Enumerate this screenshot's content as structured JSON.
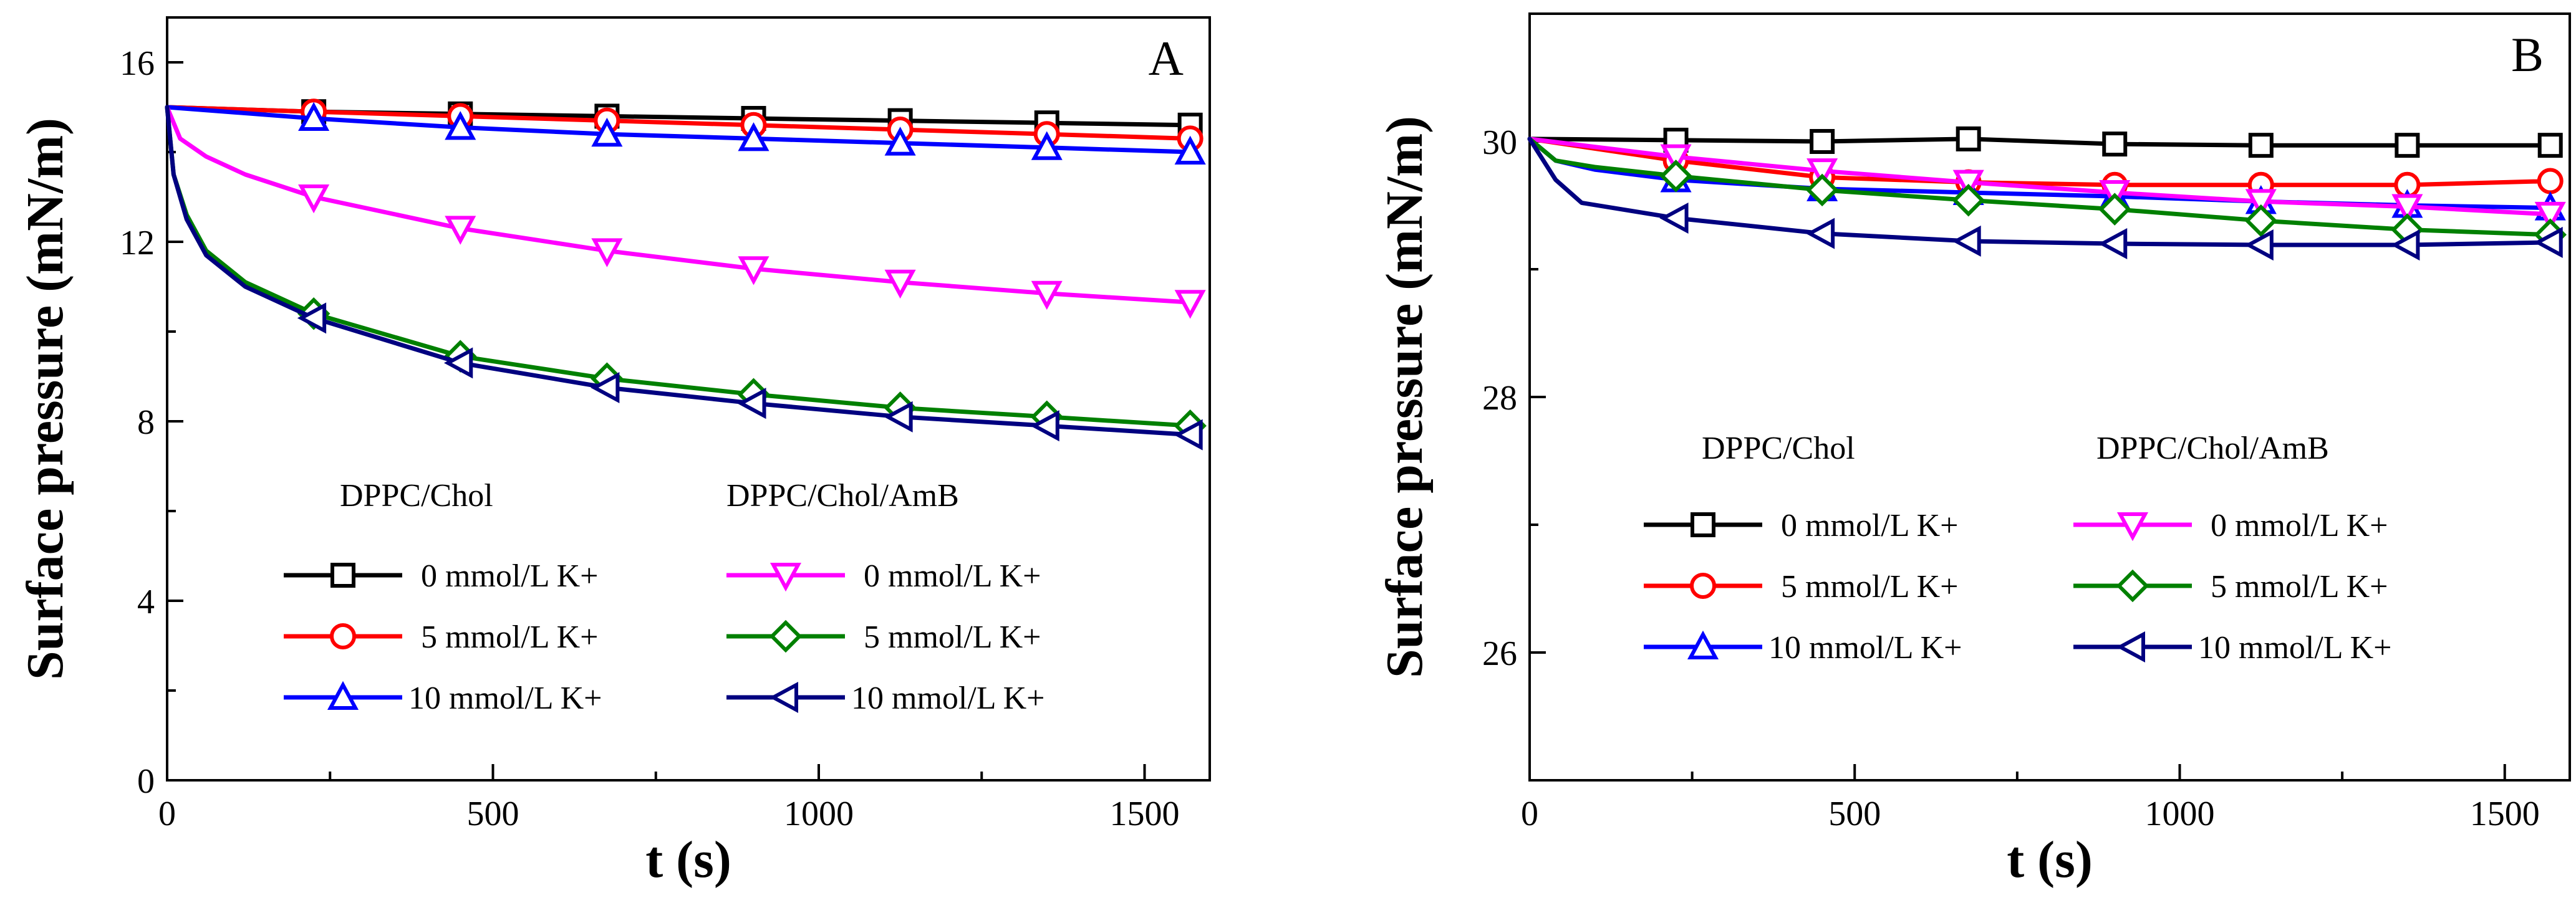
{
  "chart_data": [
    {
      "type": "line",
      "panel_label": "A",
      "xlabel": "t (s)",
      "ylabel": "Surface pressure (mN/m)",
      "xlim": [
        0,
        1600
      ],
      "ylim": [
        0,
        17
      ],
      "xticks": [
        0,
        500,
        1000,
        1500
      ],
      "xtick_labels": [
        "0",
        "500",
        "1000",
        "1500"
      ],
      "xminor": [
        250,
        750,
        1250
      ],
      "yticks": [
        0,
        4,
        8,
        12,
        16
      ],
      "ytick_labels": [
        "0",
        "4",
        "8",
        "12",
        "16"
      ],
      "yminor": [
        2,
        6,
        10,
        14
      ],
      "legend_group_titles": [
        "DPPC/Chol",
        "DPPC/Chol/AmB"
      ],
      "series": [
        {
          "name": "0 mmol/L K+",
          "group": "DPPC/Chol",
          "color": "#000000",
          "marker": "square",
          "x": [
            0,
            225,
            450,
            675,
            900,
            1125,
            1350,
            1570
          ],
          "y": [
            15.0,
            14.9,
            14.85,
            14.8,
            14.75,
            14.7,
            14.65,
            14.6
          ]
        },
        {
          "name": "5 mmol/L K+",
          "group": "DPPC/Chol",
          "color": "#ff0000",
          "marker": "circle",
          "x": [
            0,
            225,
            450,
            675,
            900,
            1125,
            1350,
            1570
          ],
          "y": [
            15.0,
            14.9,
            14.8,
            14.7,
            14.6,
            14.5,
            14.4,
            14.3
          ]
        },
        {
          "name": "10 mmol/L K+",
          "group": "DPPC/Chol",
          "color": "#0000ff",
          "marker": "triangle-up",
          "x": [
            0,
            225,
            450,
            675,
            900,
            1125,
            1350,
            1570
          ],
          "y": [
            15.0,
            14.75,
            14.55,
            14.4,
            14.3,
            14.2,
            14.1,
            14.0
          ]
        },
        {
          "name": "0 mmol/L K+",
          "group": "DPPC/Chol/AmB",
          "color": "#ff00ff",
          "marker": "triangle-down",
          "x": [
            0,
            20,
            60,
            120,
            225,
            450,
            675,
            900,
            1125,
            1350,
            1570
          ],
          "y": [
            15.0,
            14.3,
            13.9,
            13.5,
            13.0,
            12.3,
            11.8,
            11.4,
            11.1,
            10.85,
            10.65
          ]
        },
        {
          "name": "5 mmol/L K+",
          "group": "DPPC/Chol/AmB",
          "color": "#008000",
          "marker": "diamond",
          "x": [
            0,
            10,
            30,
            60,
            120,
            225,
            450,
            675,
            900,
            1125,
            1350,
            1570
          ],
          "y": [
            15.0,
            13.5,
            12.6,
            11.8,
            11.1,
            10.4,
            9.45,
            8.95,
            8.6,
            8.3,
            8.1,
            7.9
          ]
        },
        {
          "name": "10 mmol/L K+",
          "group": "DPPC/Chol/AmB",
          "color": "#000080",
          "marker": "triangle-left",
          "x": [
            0,
            10,
            30,
            60,
            120,
            225,
            450,
            675,
            900,
            1125,
            1350,
            1570
          ],
          "y": [
            15.0,
            13.5,
            12.5,
            11.7,
            11.0,
            10.3,
            9.3,
            8.75,
            8.4,
            8.1,
            7.9,
            7.7
          ]
        }
      ]
    },
    {
      "type": "line",
      "panel_label": "B",
      "xlabel": "t (s)",
      "ylabel": "Surface pressure (mN/m)",
      "xlim": [
        0,
        1600
      ],
      "ylim": [
        25,
        31
      ],
      "xticks": [
        0,
        500,
        1000,
        1500
      ],
      "xtick_labels": [
        "0",
        "500",
        "1000",
        "1500"
      ],
      "xminor": [
        250,
        750,
        1250
      ],
      "yticks": [
        26,
        28,
        30
      ],
      "ytick_labels": [
        "26",
        "28",
        "30"
      ],
      "yminor": [
        27,
        29
      ],
      "legend_group_titles": [
        "DPPC/Chol",
        "DPPC/Chol/AmB"
      ],
      "series": [
        {
          "name": "0 mmol/L K+",
          "group": "DPPC/Chol",
          "color": "#000000",
          "marker": "square",
          "x": [
            0,
            225,
            450,
            675,
            900,
            1125,
            1350,
            1570
          ],
          "y": [
            30.02,
            30.01,
            30.0,
            30.02,
            29.98,
            29.97,
            29.97,
            29.97
          ]
        },
        {
          "name": "5 mmol/L K+",
          "group": "DPPC/Chol",
          "color": "#ff0000",
          "marker": "circle",
          "x": [
            0,
            225,
            450,
            675,
            900,
            1125,
            1350,
            1570
          ],
          "y": [
            30.02,
            29.85,
            29.72,
            29.68,
            29.66,
            29.66,
            29.66,
            29.69
          ]
        },
        {
          "name": "10 mmol/L K+",
          "group": "DPPC/Chol",
          "color": "#0000ff",
          "marker": "triangle-up",
          "x": [
            0,
            40,
            100,
            225,
            450,
            675,
            900,
            1125,
            1350,
            1570
          ],
          "y": [
            30.02,
            29.85,
            29.78,
            29.7,
            29.63,
            29.6,
            29.57,
            29.53,
            29.5,
            29.48
          ]
        },
        {
          "name": "0 mmol/L K+",
          "group": "DPPC/Chol/AmB",
          "color": "#ff00ff",
          "marker": "triangle-down",
          "x": [
            0,
            225,
            450,
            675,
            900,
            1125,
            1350,
            1570
          ],
          "y": [
            30.02,
            29.88,
            29.77,
            29.68,
            29.6,
            29.53,
            29.49,
            29.43
          ]
        },
        {
          "name": "5 mmol/L K+",
          "group": "DPPC/Chol/AmB",
          "color": "#008000",
          "marker": "diamond",
          "x": [
            0,
            40,
            100,
            225,
            450,
            675,
            900,
            1125,
            1350,
            1570
          ],
          "y": [
            30.02,
            29.85,
            29.8,
            29.73,
            29.62,
            29.54,
            29.47,
            29.38,
            29.31,
            29.27
          ]
        },
        {
          "name": "10 mmol/L K+",
          "group": "DPPC/Chol/AmB",
          "color": "#000080",
          "marker": "triangle-left",
          "x": [
            0,
            40,
            80,
            225,
            450,
            675,
            900,
            1125,
            1350,
            1570
          ],
          "y": [
            30.02,
            29.7,
            29.52,
            29.4,
            29.28,
            29.22,
            29.2,
            29.19,
            29.19,
            29.21
          ]
        }
      ]
    }
  ]
}
